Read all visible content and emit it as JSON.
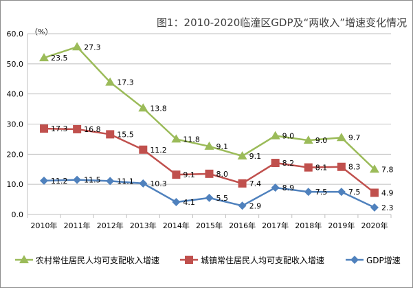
{
  "chart_data": {
    "type": "line",
    "stacked": true,
    "title": "图1：2010-2020临潼区GDP及“两收入”增速变化情况",
    "ylabel": "（%）",
    "xlabel": "",
    "ylim": [
      0,
      60
    ],
    "yticks": [
      "0.0",
      "10.0",
      "20.0",
      "30.0",
      "40.0",
      "50.0",
      "60.0"
    ],
    "grid": true,
    "legend_position": "bottom",
    "categories": [
      "2010年",
      "2011年",
      "2012年",
      "2013年",
      "2014年",
      "2015年",
      "2016年",
      "2017年",
      "2018年",
      "2019年",
      "2020年"
    ],
    "series": [
      {
        "name": "农村常住居民人均可支配收入增速",
        "color": "#9BBB59",
        "marker": "triangle",
        "values": [
          23.5,
          27.3,
          17.3,
          13.8,
          11.8,
          9.1,
          9.1,
          9.0,
          9.0,
          9.7,
          7.8
        ]
      },
      {
        "name": "城镇常住居民人均可支配收入增速",
        "color": "#C0504D",
        "marker": "square",
        "values": [
          17.3,
          16.8,
          15.5,
          11.2,
          9.1,
          8.0,
          7.4,
          8.2,
          8.1,
          8.3,
          4.9
        ]
      },
      {
        "name": "GDP增速",
        "color": "#4F81BD",
        "marker": "diamond",
        "values": [
          11.2,
          11.5,
          11.1,
          10.3,
          4.1,
          5.5,
          2.9,
          8.9,
          7.5,
          7.5,
          2.3
        ]
      }
    ]
  }
}
